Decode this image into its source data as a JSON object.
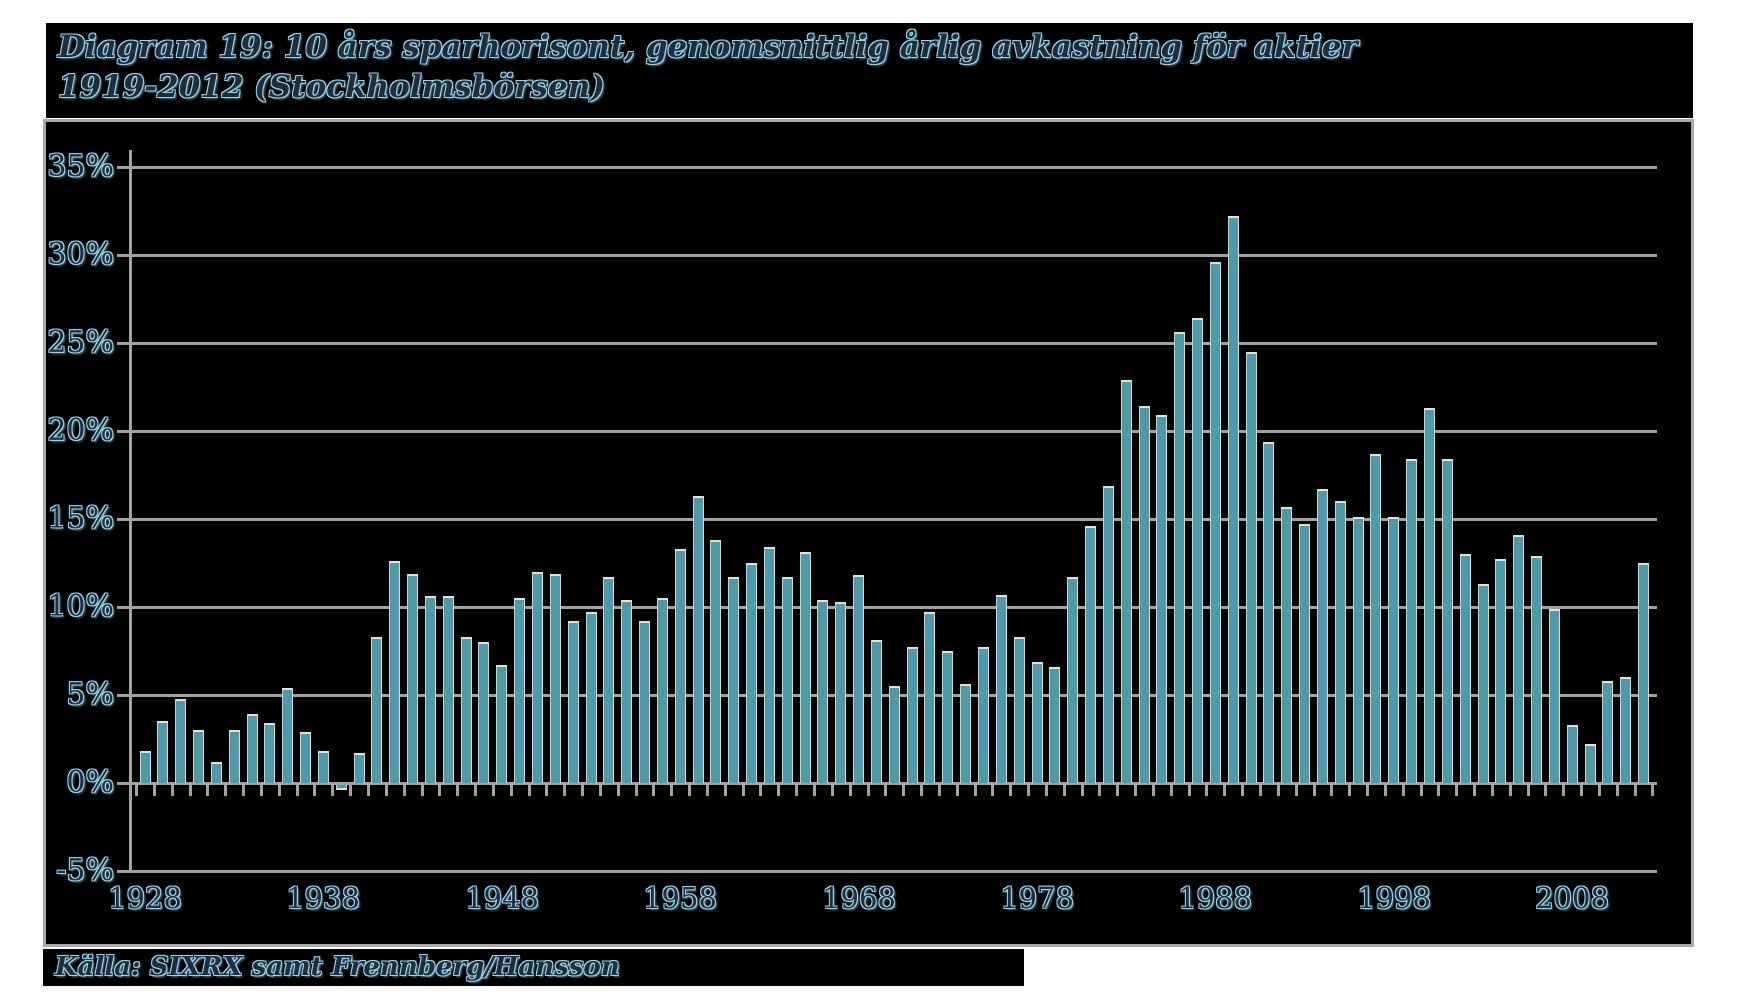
{
  "title": {
    "line1": "Diagram 19: 10 års sparhorisont, genomsnittlig årlig avkastning för aktier",
    "line2": "1919-2012 (Stockholmsbörsen)"
  },
  "source": {
    "label": "Källa: SIXRX samt Frennberg/Hansson"
  },
  "colors": {
    "bar": "#4e9aad",
    "bar_edge": "#e9e1d0",
    "grid": "#a3a3a3",
    "plot_background": "#000000",
    "page_background": "#ffffff",
    "label_fill": "#1f2e3f",
    "label_glow": "#9bd6f0"
  },
  "chart_data": {
    "type": "bar",
    "title": "Diagram 19: 10 års sparhorisont, genomsnittlig årlig avkastning för aktier 1919-2012 (Stockholmsbörsen)",
    "source": "Källa: SIXRX samt Frennberg/Hansson",
    "xlabel": "",
    "ylabel": "",
    "ylim": [
      -5,
      35
    ],
    "grid": true,
    "y_ticks": [
      35,
      30,
      25,
      20,
      15,
      10,
      5,
      0,
      -5
    ],
    "y_tick_labels": [
      "35%",
      "30%",
      "25%",
      "20%",
      "15%",
      "10%",
      "5%",
      "0%",
      "-5%"
    ],
    "x_tick_labels": [
      "1928",
      "1938",
      "1948",
      "1958",
      "1968",
      "1978",
      "1988",
      "1998",
      "2008"
    ],
    "years": [
      1928,
      1929,
      1930,
      1931,
      1932,
      1933,
      1934,
      1935,
      1936,
      1937,
      1938,
      1939,
      1940,
      1941,
      1942,
      1943,
      1944,
      1945,
      1946,
      1947,
      1948,
      1949,
      1950,
      1951,
      1952,
      1953,
      1954,
      1955,
      1956,
      1957,
      1958,
      1959,
      1960,
      1961,
      1962,
      1963,
      1964,
      1965,
      1966,
      1967,
      1968,
      1969,
      1970,
      1971,
      1972,
      1973,
      1974,
      1975,
      1976,
      1977,
      1978,
      1979,
      1980,
      1981,
      1982,
      1983,
      1984,
      1985,
      1986,
      1987,
      1988,
      1989,
      1990,
      1991,
      1992,
      1993,
      1994,
      1995,
      1996,
      1997,
      1998,
      1999,
      2000,
      2001,
      2002,
      2003,
      2004,
      2005,
      2006,
      2007,
      2008,
      2009,
      2010,
      2011,
      2012
    ],
    "values": [
      1.8,
      3.5,
      4.8,
      3.0,
      1.2,
      3.0,
      3.9,
      3.4,
      5.4,
      2.9,
      1.8,
      -0.3,
      1.7,
      8.3,
      12.6,
      11.9,
      10.6,
      10.6,
      8.3,
      8.0,
      6.7,
      10.5,
      12.0,
      11.9,
      9.2,
      9.7,
      11.7,
      10.4,
      9.2,
      10.5,
      13.3,
      16.3,
      13.8,
      11.7,
      12.5,
      13.4,
      11.7,
      13.1,
      10.4,
      10.3,
      11.8,
      8.1,
      5.5,
      7.7,
      9.7,
      7.5,
      5.6,
      7.7,
      10.7,
      8.3,
      6.9,
      6.6,
      11.7,
      14.6,
      16.9,
      22.9,
      21.4,
      20.9,
      25.6,
      26.4,
      29.6,
      32.2,
      24.5,
      19.4,
      15.7,
      14.7,
      16.7,
      16.0,
      15.1,
      18.7,
      15.1,
      18.4,
      21.3,
      18.4,
      13.0,
      11.3,
      12.7,
      14.1,
      12.9,
      9.9,
      3.3,
      2.2,
      5.8,
      6.0,
      12.5
    ]
  }
}
